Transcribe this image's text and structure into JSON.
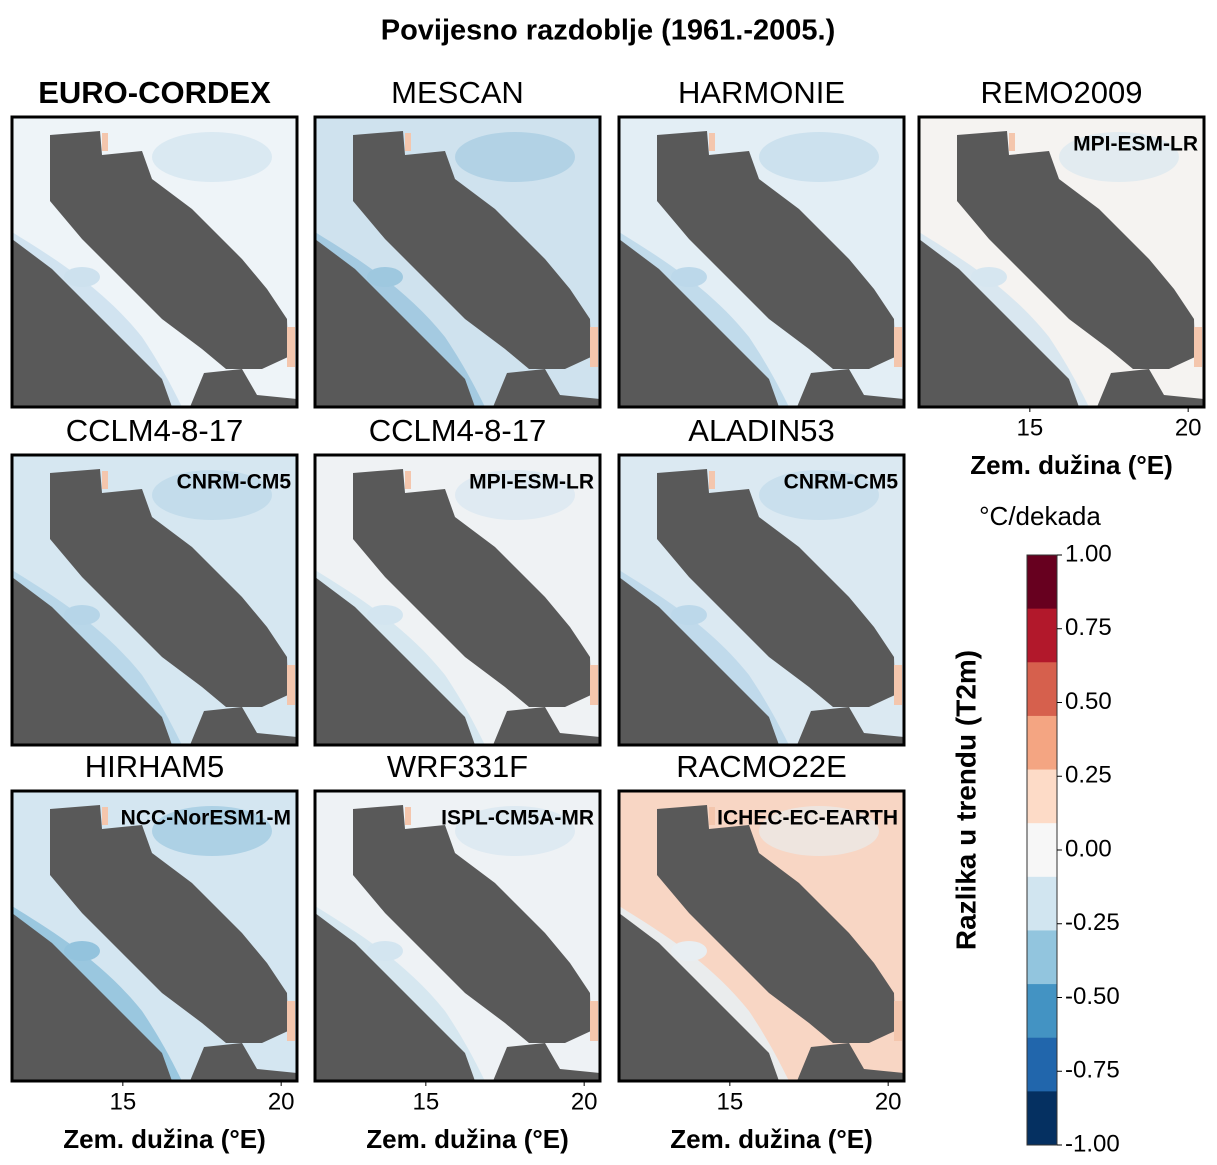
{
  "title": "Povijesno razdoblje (1961.-2005.)",
  "panels": [
    {
      "title": "EURO-CORDEX"
    },
    {
      "title": "MESCAN"
    },
    {
      "title": "HARMONIE"
    },
    {
      "title": "REMO2009",
      "driver": "MPI-ESM-LR"
    },
    {
      "title": "CCLM4-8-17",
      "driver": "CNRM-CM5"
    },
    {
      "title": "CCLM4-8-17",
      "driver": "MPI-ESM-LR"
    },
    {
      "title": "ALADIN53",
      "driver": "CNRM-CM5"
    },
    {
      "title": "HIRHAM5",
      "driver": "NCC-NorESM1-M"
    },
    {
      "title": "WRF331F",
      "driver": "ISPL-CM5A-MR"
    },
    {
      "title": "RACMO22E",
      "driver": "ICHEC-EC-EARTH"
    }
  ],
  "x_axis": {
    "label": "Zem. dužina (°E)",
    "xlim": [
      11.5,
      20.5
    ],
    "xticks": [
      15,
      20
    ]
  },
  "colorbar": {
    "unit": "°C/dekada",
    "label": "Razlika u trendu (T2m)",
    "lim": [
      -1,
      1
    ],
    "ticks": [
      {
        "value": 1,
        "label": "1.00"
      },
      {
        "value": 0.75,
        "label": "0.75"
      },
      {
        "value": 0.5,
        "label": "0.50"
      },
      {
        "value": 0.25,
        "label": "0.25"
      },
      {
        "value": 0,
        "label": "0.00"
      },
      {
        "value": -0.25,
        "label": "-0.25"
      },
      {
        "value": -0.5,
        "label": "-0.50"
      },
      {
        "value": -0.75,
        "label": "-0.75"
      },
      {
        "value": -1,
        "label": "-1.00"
      }
    ],
    "colors": [
      "#67001f",
      "#b2182b",
      "#d6604d",
      "#f4a582",
      "#fddbc7",
      "#f7f7f7",
      "#d1e5f0",
      "#92c5de",
      "#4393c3",
      "#2166ac",
      "#053061"
    ]
  }
}
